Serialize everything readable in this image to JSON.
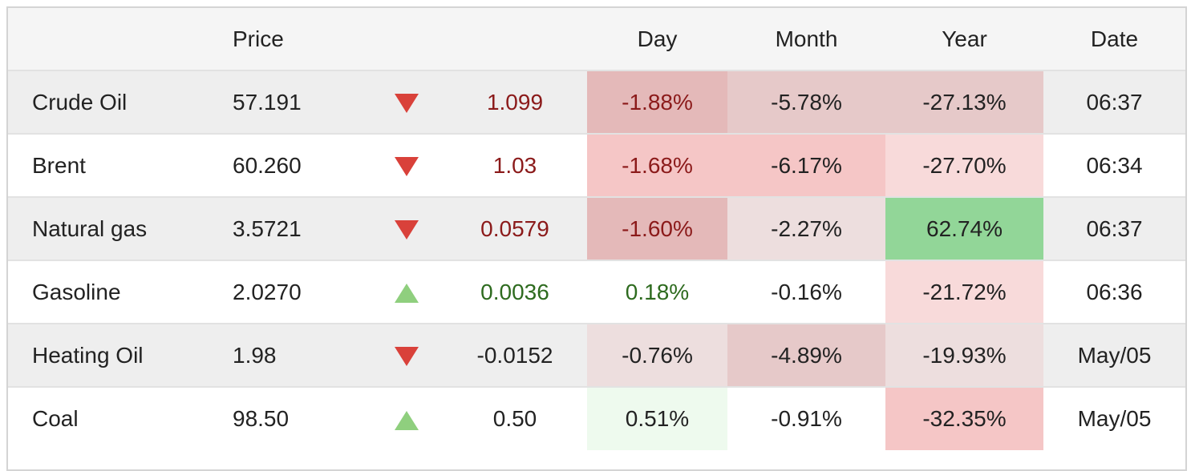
{
  "headers": {
    "name": "",
    "price": "Price",
    "arrow": "",
    "change": "",
    "day": "Day",
    "month": "Month",
    "year": "Year",
    "date": "Date"
  },
  "colors": {
    "negative_text": "#8b1a1a",
    "positive_text": "#2e6b1f",
    "down_arrow": "#d9413a",
    "up_arrow": "#8fcf7e"
  },
  "rows": [
    {
      "name": "Crude Oil",
      "price": "57.191",
      "direction": "down",
      "change": "1.099",
      "change_tone": "neg",
      "day": "-1.88%",
      "day_tone": "neg",
      "day_bg": "#e4b9b9",
      "month": "-5.78%",
      "month_bg": "#e6c9c9",
      "year": "-27.13%",
      "year_bg": "#e6c9c9",
      "date": "06:37"
    },
    {
      "name": "Brent",
      "price": "60.260",
      "direction": "down",
      "change": "1.03",
      "change_tone": "neg",
      "day": "-1.68%",
      "day_tone": "neg",
      "day_bg": "#f5c6c6",
      "month": "-6.17%",
      "month_bg": "#f5c6c6",
      "year": "-27.70%",
      "year_bg": "#f8dada",
      "date": "06:34"
    },
    {
      "name": "Natural gas",
      "price": "3.5721",
      "direction": "down",
      "change": "0.0579",
      "change_tone": "neg",
      "day": "-1.60%",
      "day_tone": "neg",
      "day_bg": "#e4b9b9",
      "month": "-2.27%",
      "month_bg": "#eddede",
      "year": "62.74%",
      "year_bg": "#92d698",
      "date": "06:37"
    },
    {
      "name": "Gasoline",
      "price": "2.0270",
      "direction": "up",
      "change": "0.0036",
      "change_tone": "pos",
      "day": "0.18%",
      "day_tone": "pos",
      "day_bg": "",
      "month": "-0.16%",
      "month_bg": "",
      "year": "-21.72%",
      "year_bg": "#f8dada",
      "date": "06:36"
    },
    {
      "name": "Heating Oil",
      "price": "1.98",
      "direction": "down",
      "change": "-0.0152",
      "change_tone": "neu",
      "day": "-0.76%",
      "day_tone": "neu",
      "day_bg": "#eddede",
      "month": "-4.89%",
      "month_bg": "#e6c9c9",
      "year": "-19.93%",
      "year_bg": "#eddede",
      "date": "May/05"
    },
    {
      "name": "Coal",
      "price": "98.50",
      "direction": "up",
      "change": "0.50",
      "change_tone": "neu",
      "day": "0.51%",
      "day_tone": "neu",
      "day_bg": "#eefaee",
      "month": "-0.91%",
      "month_bg": "",
      "year": "-32.35%",
      "year_bg": "#f5c6c6",
      "date": "May/05"
    }
  ]
}
